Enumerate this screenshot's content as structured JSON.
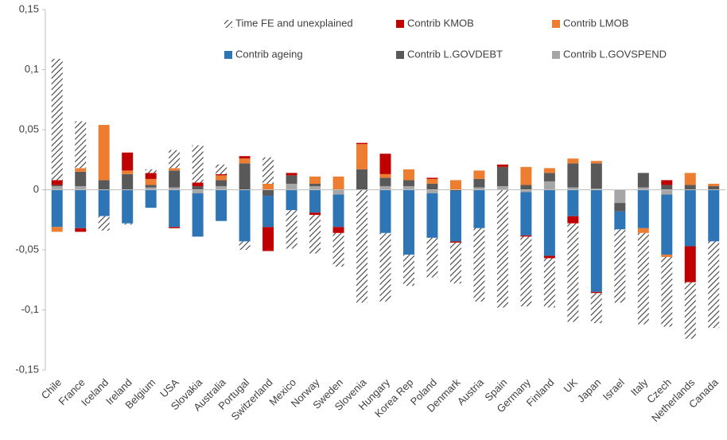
{
  "chart_data": {
    "type": "bar",
    "stacked": true,
    "categories": [
      "Chile",
      "France",
      "Iceland",
      "Ireland",
      "Belgium",
      "USA",
      "Slovakia",
      "Australia",
      "Portugal",
      "Switzerland",
      "Mexico",
      "Norway",
      "Sweden",
      "Slovenia",
      "Hungary",
      "Korea Rep",
      "Poland",
      "Denmark",
      "Austria",
      "Spain",
      "Germany",
      "Finland",
      "UK",
      "Japan",
      "Israel",
      "Italy",
      "Czech",
      "Netherlands",
      "Canada"
    ],
    "series": [
      {
        "name": "Time FE and unexplained",
        "color": "#404040",
        "hatch": true,
        "values": [
          0.101,
          0.039,
          -0.012,
          -0.001,
          0.003,
          0.015,
          0.031,
          0.008,
          -0.007,
          0.022,
          -0.032,
          -0.032,
          -0.028,
          -0.094,
          -0.057,
          -0.026,
          -0.033,
          -0.034,
          -0.061,
          -0.098,
          -0.058,
          -0.041,
          -0.082,
          -0.025,
          -0.061,
          -0.076,
          -0.058,
          -0.047,
          -0.072
        ]
      },
      {
        "name": "Contrib KMOB",
        "color": "#c00000",
        "values": [
          0.004,
          -0.003,
          0,
          0.015,
          0.005,
          -0.001,
          0.003,
          0.001,
          0.002,
          -0.02,
          0.002,
          -0.002,
          -0.005,
          0.001,
          0.017,
          0,
          0.001,
          -0.001,
          0,
          0.002,
          -0.001,
          -0.002,
          -0.006,
          -0.001,
          0,
          0,
          0.004,
          -0.03,
          0
        ]
      },
      {
        "name": "Contrib LMOB",
        "color": "#ed7d31",
        "values": [
          -0.004,
          0.003,
          0.046,
          0.003,
          0.005,
          0.002,
          0,
          0.004,
          0.004,
          0.005,
          0,
          0.006,
          0.011,
          0.021,
          0.003,
          0.009,
          0.004,
          0.008,
          0.007,
          0,
          0.015,
          0.004,
          0.004,
          0.002,
          0,
          -0.004,
          -0.002,
          0.01,
          0.002
        ]
      },
      {
        "name": "Contrib ageing",
        "color": "#2e75b6",
        "values": [
          -0.031,
          -0.032,
          -0.022,
          -0.028,
          -0.015,
          -0.031,
          -0.036,
          -0.026,
          -0.043,
          -0.026,
          -0.017,
          -0.019,
          -0.027,
          0,
          -0.036,
          -0.054,
          -0.037,
          -0.042,
          -0.032,
          0,
          -0.036,
          -0.055,
          -0.022,
          -0.085,
          -0.015,
          -0.032,
          -0.05,
          -0.047,
          -0.043
        ]
      },
      {
        "name": "Contrib L.GOVDEBT",
        "color": "#595959",
        "values": [
          0.001,
          0.012,
          0.008,
          0.013,
          0.002,
          0.014,
          0.003,
          0.005,
          0.022,
          -0.005,
          0.007,
          0.002,
          0,
          0.017,
          0.007,
          0.005,
          0.005,
          -0.001,
          0.007,
          0.016,
          0.004,
          0.007,
          0.02,
          0.021,
          -0.007,
          0.012,
          0.004,
          0.004,
          0.003
        ]
      },
      {
        "name": "Contrib L.GOVSPEND",
        "color": "#a6a6a6",
        "values": [
          0.003,
          0.003,
          0,
          0,
          0.002,
          0.002,
          -0.003,
          0.003,
          0,
          0,
          0.005,
          0.003,
          -0.004,
          0,
          0.003,
          0.003,
          -0.003,
          0,
          0.002,
          0.003,
          -0.002,
          0.007,
          0.002,
          0.001,
          -0.011,
          0.002,
          -0.004,
          0,
          0
        ]
      }
    ],
    "ylim": [
      -0.15,
      0.15
    ],
    "yticks": [
      {
        "value": -0.15,
        "label": "-0,15"
      },
      {
        "value": -0.1,
        "label": "-0,1"
      },
      {
        "value": -0.05,
        "label": "-0,05"
      },
      0,
      {
        "value": 0.05,
        "label": "0,05"
      },
      {
        "value": 0.1,
        "label": "0,1"
      },
      {
        "value": 0.15,
        "label": "0,15"
      }
    ],
    "grid": false
  }
}
